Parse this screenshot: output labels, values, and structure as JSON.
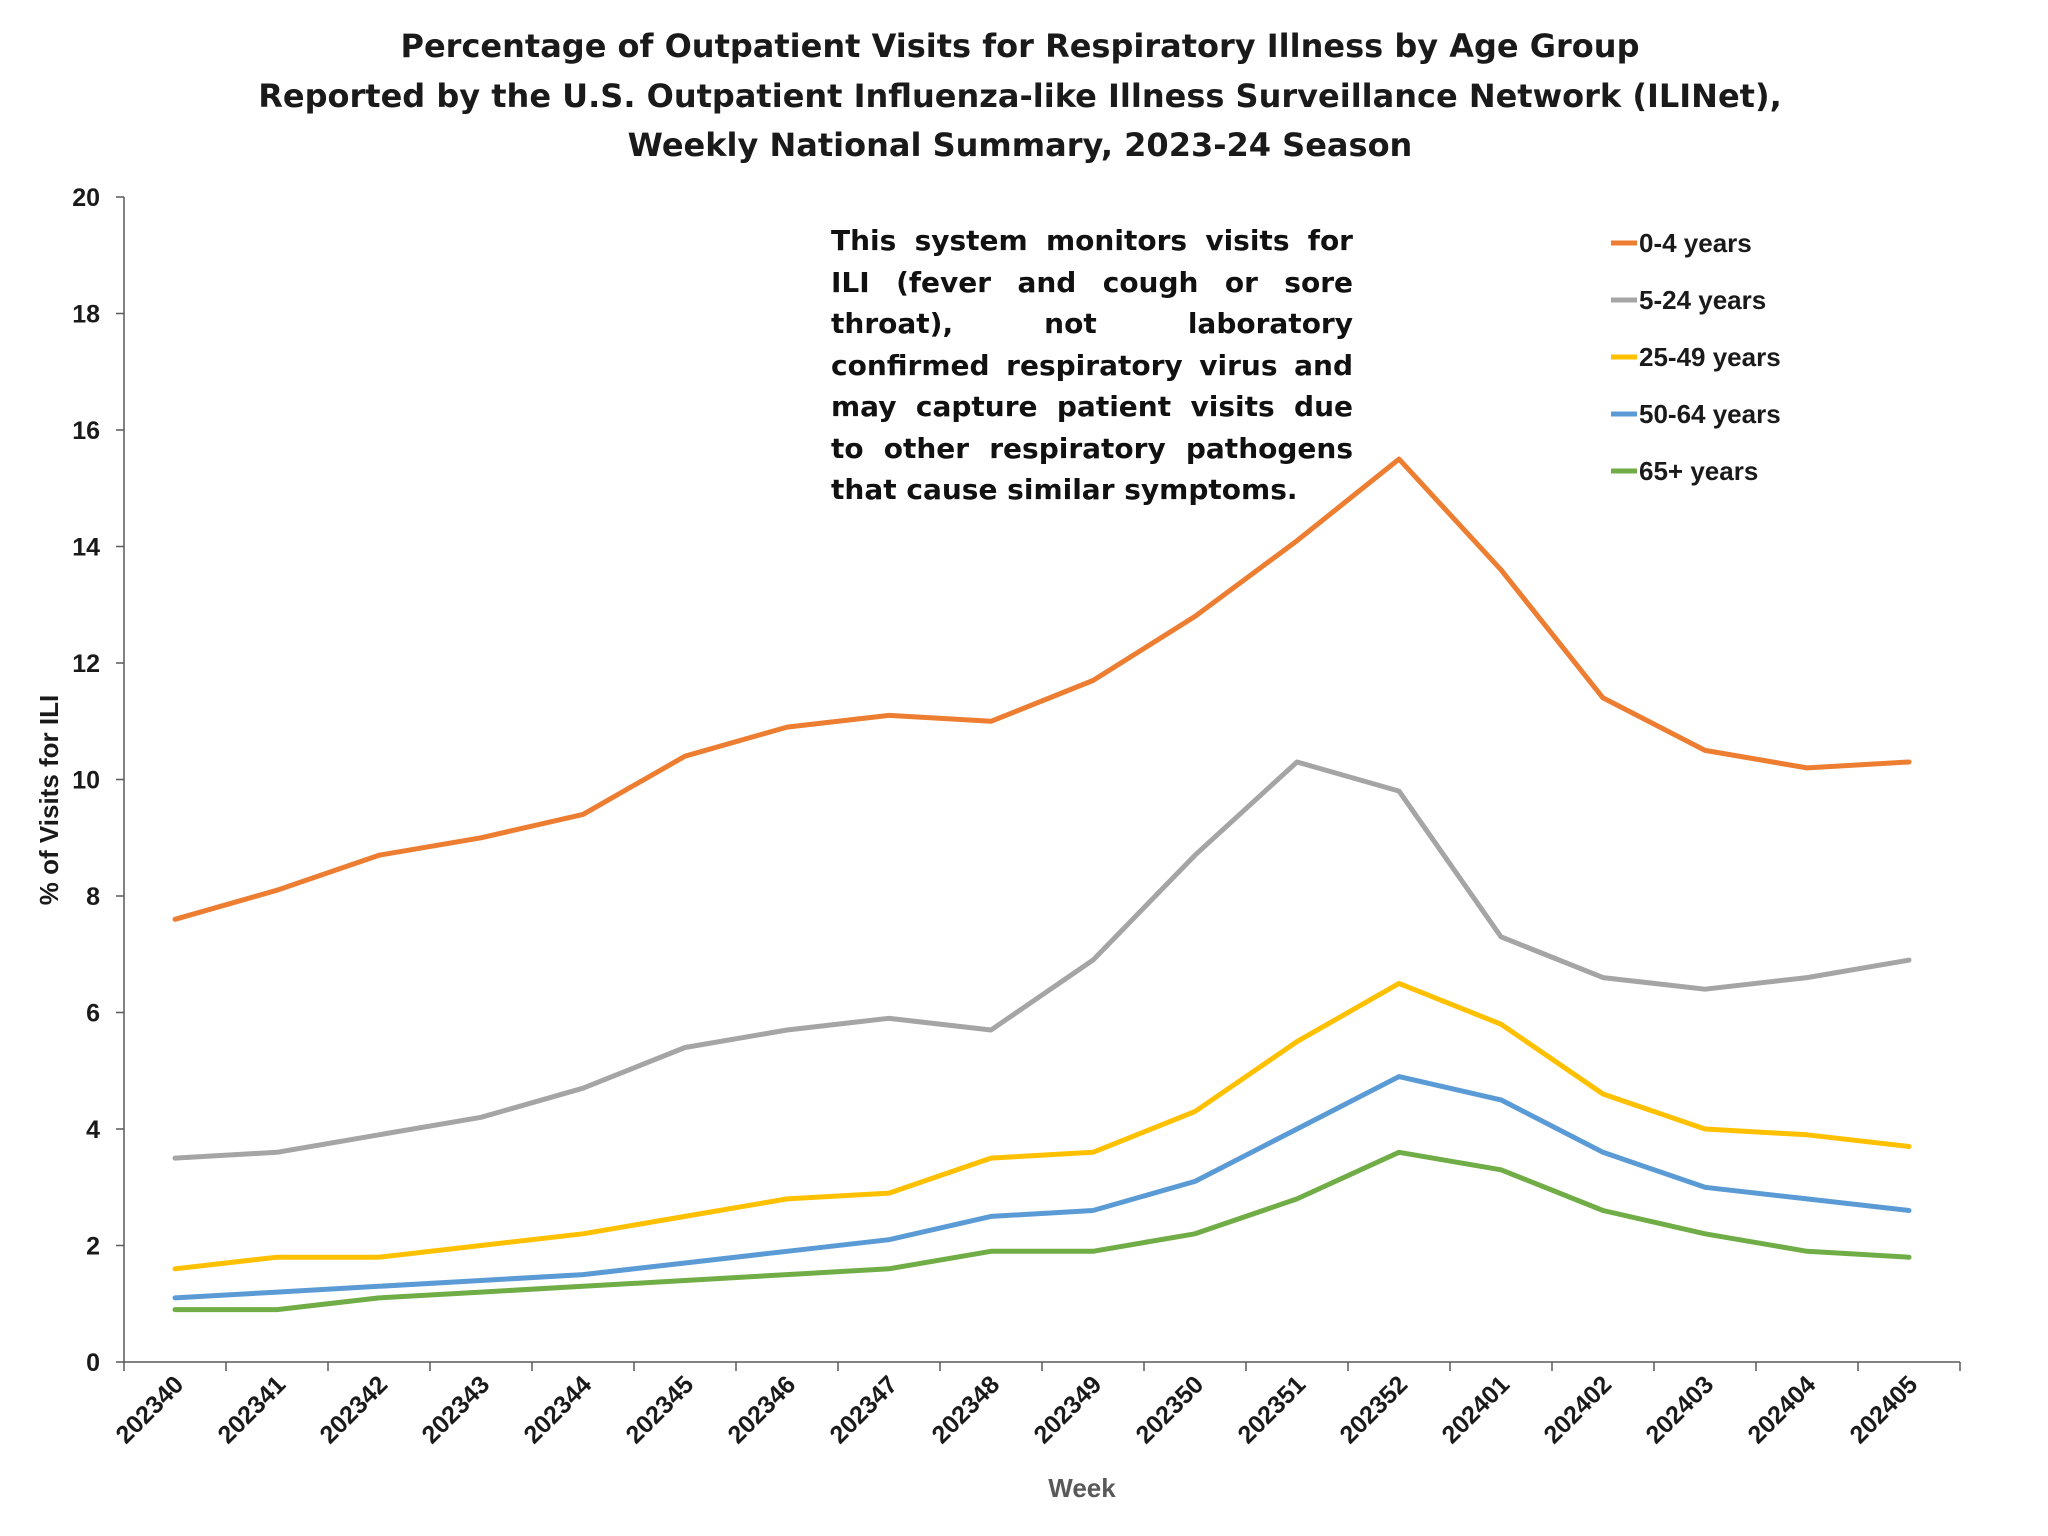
{
  "chart_data": {
    "type": "line",
    "title": [
      "Percentage of Outpatient Visits for Respiratory Illness by Age Group",
      "Reported by the U.S. Outpatient Influenza-like Illness Surveillance Network (ILINet),",
      "Weekly National Summary, 2023-24 Season"
    ],
    "xlabel": "Week",
    "ylabel": "% of Visits for ILI",
    "ylim": [
      0,
      20
    ],
    "yticks": [
      0,
      2,
      4,
      6,
      8,
      10,
      12,
      14,
      16,
      18,
      20
    ],
    "categories": [
      "202340",
      "202341",
      "202342",
      "202343",
      "202344",
      "202345",
      "202346",
      "202347",
      "202348",
      "202349",
      "202350",
      "202351",
      "202352",
      "202401",
      "202402",
      "202403",
      "202404",
      "202405"
    ],
    "annotation": "This system monitors visits for ILI (fever and cough or sore throat), not laboratory confirmed respiratory virus and may capture patient visits due to other respiratory pathogens that cause similar symptoms.",
    "legend_position": "top-right",
    "series": [
      {
        "name": "0-4 years",
        "color": "#ED7D31",
        "values": [
          7.6,
          8.1,
          8.7,
          9.0,
          9.4,
          10.4,
          10.9,
          11.1,
          11.0,
          11.7,
          12.8,
          14.1,
          15.5,
          13.6,
          11.4,
          10.5,
          10.2,
          10.3
        ]
      },
      {
        "name": "5-24 years",
        "color": "#A5A5A5",
        "values": [
          3.5,
          3.6,
          3.9,
          4.2,
          4.7,
          5.4,
          5.7,
          5.9,
          5.7,
          6.9,
          8.7,
          10.3,
          9.8,
          7.3,
          6.6,
          6.4,
          6.6,
          6.9
        ]
      },
      {
        "name": "25-49 years",
        "color": "#FFC000",
        "values": [
          1.6,
          1.8,
          1.8,
          2.0,
          2.2,
          2.5,
          2.8,
          2.9,
          3.5,
          3.6,
          4.3,
          5.5,
          6.5,
          5.8,
          4.6,
          4.0,
          3.9,
          3.7
        ]
      },
      {
        "name": "50-64 years",
        "color": "#5B9BD5",
        "values": [
          1.1,
          1.2,
          1.3,
          1.4,
          1.5,
          1.7,
          1.9,
          2.1,
          2.5,
          2.6,
          3.1,
          4.0,
          4.9,
          4.5,
          3.6,
          3.0,
          2.8,
          2.6
        ]
      },
      {
        "name": "65+ years",
        "color": "#70AD47",
        "values": [
          0.9,
          0.9,
          1.1,
          1.2,
          1.3,
          1.4,
          1.5,
          1.6,
          1.9,
          1.9,
          2.2,
          2.8,
          3.6,
          3.3,
          2.6,
          2.2,
          1.9,
          1.8
        ]
      }
    ],
    "axis_color": "#595959",
    "xlabel_color": "#595959"
  }
}
